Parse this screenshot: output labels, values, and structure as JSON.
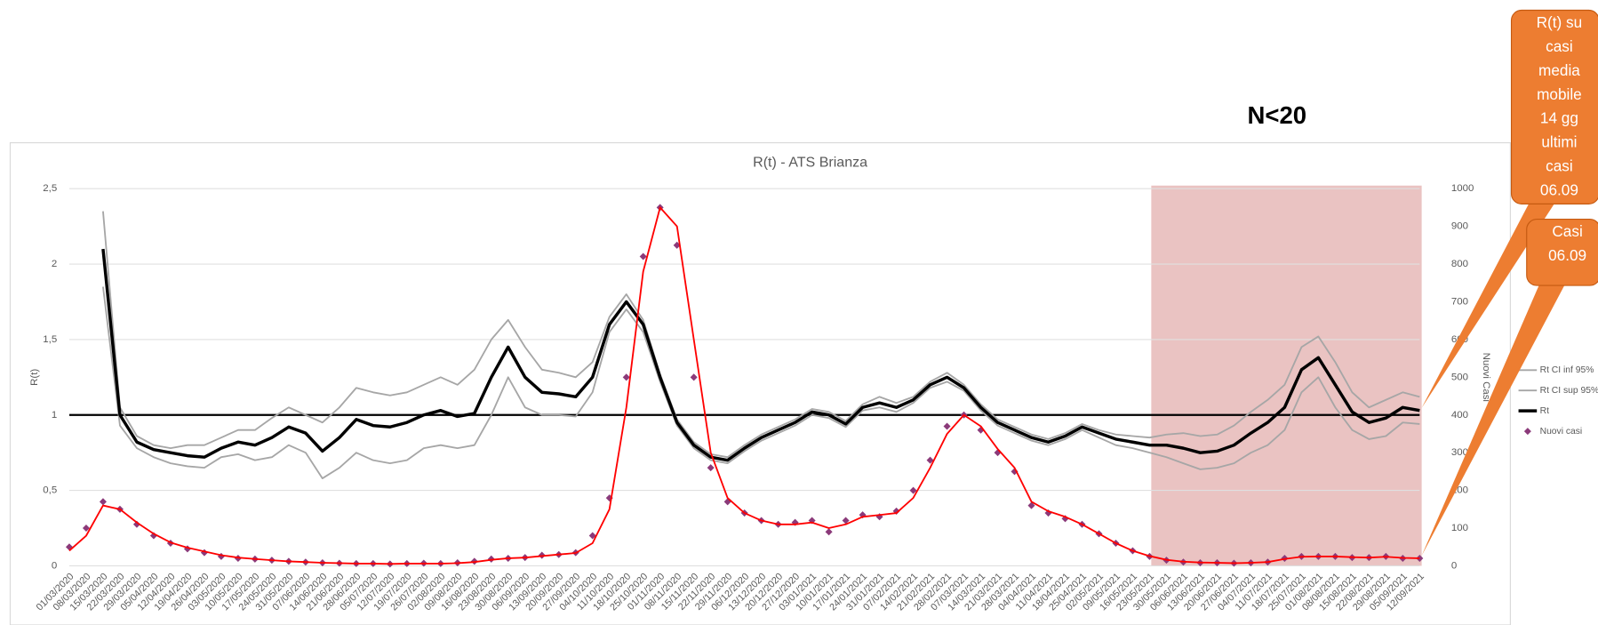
{
  "chart_data": {
    "type": "combo",
    "title": "R(t) - ATS Brianza",
    "y_label": "R(t)",
    "y2_label": "Nuovi Casi",
    "categories": [
      "01/03/2020",
      "08/03/2020",
      "15/03/2020",
      "22/03/2020",
      "29/03/2020",
      "05/04/2020",
      "12/04/2020",
      "19/04/2020",
      "26/04/2020",
      "03/05/2020",
      "10/05/2020",
      "17/05/2020",
      "24/05/2020",
      "31/05/2020",
      "07/06/2020",
      "14/06/2020",
      "21/06/2020",
      "28/06/2020",
      "05/07/2020",
      "12/07/2020",
      "19/07/2020",
      "26/07/2020",
      "02/08/2020",
      "09/08/2020",
      "16/08/2020",
      "23/08/2020",
      "30/08/2020",
      "06/09/2020",
      "13/09/2020",
      "20/09/2020",
      "27/09/2020",
      "04/10/2020",
      "11/10/2020",
      "18/10/2020",
      "25/10/2020",
      "01/11/2020",
      "08/11/2020",
      "15/11/2020",
      "22/11/2020",
      "29/11/2020",
      "06/12/2020",
      "13/12/2020",
      "20/12/2020",
      "27/12/2020",
      "03/01/2021",
      "10/01/2021",
      "17/01/2021",
      "24/01/2021",
      "31/01/2021",
      "07/02/2021",
      "14/02/2021",
      "21/02/2021",
      "28/02/2021",
      "07/03/2021",
      "14/03/2021",
      "21/03/2021",
      "28/03/2021",
      "04/04/2021",
      "11/04/2021",
      "18/04/2021",
      "25/04/2021",
      "02/05/2021",
      "09/05/2021",
      "16/05/2021",
      "23/05/2021",
      "30/05/2021",
      "06/06/2021",
      "13/06/2021",
      "20/06/2021",
      "27/06/2021",
      "04/07/2021",
      "11/07/2021",
      "18/07/2021",
      "25/07/2021",
      "01/08/2021",
      "08/08/2021",
      "15/08/2021",
      "22/08/2021",
      "29/08/2021",
      "05/09/2021",
      "12/09/2021"
    ],
    "series": [
      {
        "name": "Rt CI inf 95%",
        "color": "#a6a6a6",
        "style": "line",
        "axis": "y",
        "values": [
          null,
          null,
          1.85,
          0.93,
          0.78,
          0.72,
          0.68,
          0.66,
          0.65,
          0.72,
          0.74,
          0.7,
          0.72,
          0.8,
          0.75,
          0.58,
          0.65,
          0.75,
          0.7,
          0.68,
          0.7,
          0.78,
          0.8,
          0.78,
          0.8,
          1.0,
          1.25,
          1.05,
          1.0,
          1.0,
          0.99,
          1.15,
          1.55,
          1.7,
          1.55,
          1.22,
          0.93,
          0.78,
          0.7,
          0.68,
          0.76,
          0.83,
          0.88,
          0.93,
          1.0,
          0.98,
          0.92,
          1.03,
          1.05,
          1.02,
          1.08,
          1.18,
          1.22,
          1.16,
          1.03,
          0.93,
          0.88,
          0.83,
          0.8,
          0.84,
          0.9,
          0.85,
          0.8,
          0.78,
          0.75,
          0.72,
          0.68,
          0.64,
          0.65,
          0.68,
          0.75,
          0.8,
          0.9,
          1.15,
          1.25,
          1.05,
          0.9,
          0.84,
          0.86,
          0.95,
          0.94
        ]
      },
      {
        "name": "Rt CI sup 95%",
        "color": "#a6a6a6",
        "style": "line",
        "axis": "y",
        "values": [
          null,
          null,
          2.35,
          1.05,
          0.86,
          0.8,
          0.78,
          0.8,
          0.8,
          0.85,
          0.9,
          0.9,
          0.98,
          1.05,
          1.0,
          0.95,
          1.05,
          1.18,
          1.15,
          1.13,
          1.15,
          1.2,
          1.25,
          1.2,
          1.3,
          1.5,
          1.63,
          1.45,
          1.3,
          1.28,
          1.25,
          1.35,
          1.65,
          1.8,
          1.63,
          1.27,
          0.97,
          0.82,
          0.74,
          0.72,
          0.8,
          0.87,
          0.92,
          0.97,
          1.04,
          1.02,
          0.96,
          1.07,
          1.12,
          1.08,
          1.12,
          1.22,
          1.28,
          1.2,
          1.07,
          0.97,
          0.92,
          0.87,
          0.84,
          0.88,
          0.94,
          0.9,
          0.87,
          0.86,
          0.85,
          0.87,
          0.88,
          0.86,
          0.87,
          0.93,
          1.02,
          1.1,
          1.2,
          1.45,
          1.52,
          1.35,
          1.15,
          1.05,
          1.1,
          1.15,
          1.12
        ]
      },
      {
        "name": "Rt",
        "color": "#000000",
        "style": "line",
        "width": 3,
        "axis": "y",
        "values": [
          null,
          null,
          2.1,
          1.0,
          0.82,
          0.77,
          0.75,
          0.73,
          0.72,
          0.78,
          0.82,
          0.8,
          0.85,
          0.92,
          0.88,
          0.76,
          0.85,
          0.97,
          0.93,
          0.92,
          0.95,
          1.0,
          1.03,
          0.99,
          1.01,
          1.25,
          1.45,
          1.25,
          1.15,
          1.14,
          1.12,
          1.25,
          1.6,
          1.75,
          1.6,
          1.25,
          0.95,
          0.8,
          0.72,
          0.7,
          0.78,
          0.85,
          0.9,
          0.95,
          1.02,
          1.0,
          0.94,
          1.05,
          1.08,
          1.05,
          1.1,
          1.2,
          1.25,
          1.18,
          1.05,
          0.95,
          0.9,
          0.85,
          0.82,
          0.86,
          0.92,
          0.88,
          0.84,
          0.82,
          0.8,
          0.8,
          0.78,
          0.75,
          0.76,
          0.8,
          0.88,
          0.95,
          1.05,
          1.3,
          1.38,
          1.2,
          1.02,
          0.95,
          0.98,
          1.05,
          1.03
        ]
      },
      {
        "name": "Nuovi casi",
        "color": "#8b3a7a",
        "style": "scatter",
        "axis": "y2",
        "values": [
          50,
          100,
          170,
          150,
          110,
          80,
          60,
          45,
          35,
          25,
          20,
          18,
          15,
          12,
          10,
          8,
          7,
          6,
          6,
          5,
          6,
          7,
          6,
          8,
          12,
          18,
          20,
          22,
          28,
          30,
          35,
          80,
          180,
          500,
          820,
          950,
          850,
          500,
          260,
          170,
          140,
          120,
          110,
          115,
          120,
          90,
          120,
          135,
          130,
          145,
          200,
          280,
          370,
          400,
          360,
          300,
          250,
          160,
          140,
          125,
          110,
          85,
          60,
          40,
          25,
          15,
          10,
          8,
          8,
          7,
          8,
          10,
          20,
          25,
          25,
          25,
          22,
          22,
          25,
          20,
          20
        ]
      },
      {
        "color": "#ff0000",
        "style": "line",
        "axis": "y2",
        "values": [
          40,
          80,
          160,
          150,
          115,
          85,
          62,
          48,
          38,
          28,
          22,
          18,
          15,
          12,
          10,
          8,
          7,
          6,
          6,
          5,
          6,
          6,
          6,
          7,
          10,
          16,
          20,
          22,
          26,
          30,
          34,
          60,
          150,
          420,
          780,
          950,
          900,
          600,
          300,
          180,
          140,
          120,
          110,
          110,
          115,
          100,
          110,
          130,
          135,
          140,
          180,
          260,
          350,
          400,
          370,
          310,
          260,
          170,
          145,
          130,
          110,
          85,
          60,
          40,
          26,
          16,
          11,
          9,
          8,
          7,
          8,
          10,
          18,
          24,
          25,
          25,
          23,
          22,
          24,
          21,
          20
        ]
      }
    ],
    "ylim": [
      0,
      2.5
    ],
    "yticks": [
      {
        "value": 0,
        "label": "0"
      },
      {
        "value": 0.5,
        "label": "0,5"
      },
      {
        "value": 1,
        "label": "1"
      },
      {
        "value": 1.5,
        "label": "1,5"
      },
      {
        "value": 2,
        "label": "2"
      },
      {
        "value": 2.5,
        "label": "2,5"
      }
    ],
    "y2lim": [
      0,
      1000
    ],
    "y2ticks": [
      0,
      100,
      200,
      300,
      400,
      500,
      600,
      700,
      800,
      900,
      1000
    ],
    "grid": true,
    "ref_line": 1,
    "highlight_from": "30/05/2021",
    "highlight_color": "#e6b8b7",
    "annotation": "N<20",
    "callouts": [
      {
        "lines": [
          "R(t) su",
          "casi",
          "media",
          "mobile",
          "14 gg",
          "ultimi",
          "casi",
          "06.09"
        ],
        "color": "#ed7d31"
      },
      {
        "lines": [
          "Casi",
          "06.09"
        ],
        "color": "#ed7d31"
      }
    ]
  }
}
